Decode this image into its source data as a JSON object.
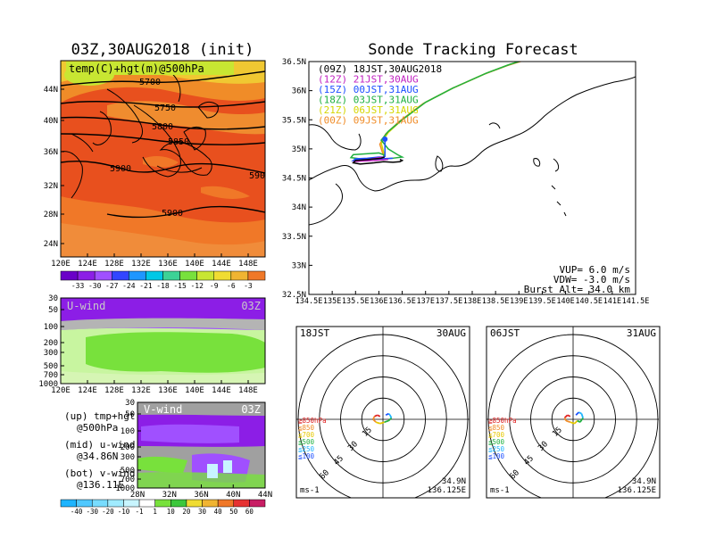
{
  "chart_data": [
    {
      "type": "heatmap",
      "panel": "upper-left map",
      "title": "03Z,30AUG2018 (init)",
      "inner_label": "temp(C)+hgt(m)@500hPa",
      "x_ticks": [
        "120E",
        "124E",
        "128E",
        "132E",
        "136E",
        "140E",
        "144E",
        "148E"
      ],
      "y_ticks": [
        "24N",
        "28N",
        "32N",
        "36N",
        "40N",
        "44N"
      ],
      "contour_labels": [
        "5700",
        "5750",
        "5800",
        "5850",
        "5900",
        "5900",
        "5900",
        "590"
      ],
      "colorbar_ticks": [
        "-33",
        "-30",
        "-27",
        "-24",
        "-21",
        "-18",
        "-15",
        "-12",
        "-9",
        "-6",
        "-3"
      ],
      "colorbar_colors": [
        "#6a00c8",
        "#8c1ee6",
        "#a050ff",
        "#3246ff",
        "#1e96ff",
        "#00c8e6",
        "#3cd296",
        "#78e13c",
        "#c8e632",
        "#f0dc32",
        "#f0b432",
        "#f07828"
      ]
    },
    {
      "type": "heatmap",
      "panel": "u-wind cross section",
      "label": "U-wind",
      "time": "03Z",
      "y_ticks": [
        "30",
        "50",
        "100",
        "200",
        "300",
        "500",
        "700",
        "1000"
      ],
      "x_ticks": [
        "120E",
        "124E",
        "128E",
        "132E",
        "136E",
        "140E",
        "144E",
        "148E"
      ]
    },
    {
      "type": "heatmap",
      "panel": "v-wind cross section",
      "label": "V-wind",
      "time": "03Z",
      "y_ticks": [
        "30",
        "50",
        "100",
        "200",
        "300",
        "500",
        "700",
        "1000"
      ],
      "x_ticks": [
        "28N",
        "32N",
        "36N",
        "40N",
        "44N"
      ],
      "colorbar_ticks": [
        "-40",
        "-30",
        "-20",
        "-10",
        "-1",
        "1",
        "10",
        "20",
        "30",
        "40",
        "50",
        "60"
      ],
      "colorbar_colors": [
        "#1eb4ff",
        "#50c8ff",
        "#78dcff",
        "#a0ebff",
        "#c8f5ff",
        "#ffffff",
        "#78e13c",
        "#3cc83c",
        "#f0dc32",
        "#f0b432",
        "#f07828",
        "#e63232",
        "#c81e64"
      ]
    },
    {
      "type": "line",
      "panel": "sonde tracking map",
      "title": "Sonde Tracking Forecast",
      "x_ticks": [
        "134.5E",
        "135E",
        "135.5E",
        "136E",
        "136.5E",
        "137E",
        "137.5E",
        "138E",
        "138.5E",
        "139E",
        "139.5E",
        "140E",
        "140.5E",
        "141E",
        "141.5E"
      ],
      "y_ticks": [
        "36.5N",
        "36N",
        "35.5N",
        "35N",
        "34.5N",
        "34N",
        "33.5N",
        "33N",
        "32.5N"
      ],
      "xlim": [
        134.5,
        141.5
      ],
      "ylim": [
        32.5,
        36.5
      ],
      "launch_point": [
        136.13,
        34.86
      ],
      "series": [
        {
          "name": "(09Z)  18JST,30AUG2018",
          "color": "#000000",
          "lon": [
            136.12,
            136.05,
            135.8,
            135.5,
            135.45,
            135.6,
            135.9,
            136.1,
            136.3,
            136.45,
            136.5,
            136.45
          ],
          "lat": [
            34.86,
            34.84,
            34.82,
            34.8,
            34.76,
            34.74,
            34.76,
            34.78,
            34.77,
            34.78,
            34.8,
            34.82
          ]
        },
        {
          "name": "(12Z)  21JST,30AUG",
          "color": "#c020c0",
          "lon": [
            136.12,
            136.0,
            135.8,
            135.55,
            135.45,
            135.6,
            135.9,
            136.2
          ],
          "lat": [
            34.86,
            34.85,
            34.82,
            34.8,
            34.78,
            34.79,
            34.8,
            34.82
          ]
        },
        {
          "name": "(15Z)  00JST,31AUG",
          "color": "#1e50ff",
          "lon": [
            136.12,
            136.0,
            135.75,
            135.5,
            135.45,
            135.7,
            136.0,
            136.3
          ],
          "lat": [
            34.86,
            34.86,
            34.84,
            34.83,
            34.8,
            34.82,
            34.83,
            34.84
          ]
        },
        {
          "name": "(18Z)  03JST,31AUG",
          "color": "#20b040",
          "lon": [
            136.12,
            136.1,
            136.0,
            135.8,
            135.45,
            135.4,
            135.6,
            136.0,
            136.3,
            136.5,
            136.4,
            136.2,
            136.05,
            136.2,
            136.5,
            137.0,
            137.6,
            138.3,
            138.8,
            139.2
          ],
          "lat": [
            34.86,
            34.9,
            34.93,
            34.92,
            34.9,
            34.85,
            34.83,
            34.82,
            34.84,
            34.86,
            34.9,
            35.0,
            35.15,
            35.3,
            35.5,
            35.8,
            36.05,
            36.3,
            36.45,
            36.55
          ]
        },
        {
          "name": "(21Z)  06JST,31AUG",
          "color": "#d6d600",
          "lon": [
            136.12,
            136.1,
            136.05,
            136.2,
            136.5,
            137.0,
            137.6,
            138.3,
            138.8,
            139.2
          ],
          "lat": [
            34.86,
            34.95,
            35.1,
            35.28,
            35.5,
            35.8,
            36.05,
            36.3,
            36.45,
            36.55
          ]
        },
        {
          "name": "(00Z)  09JST,31AUG",
          "color": "#f08c28",
          "lon": [
            136.12,
            136.08,
            136.02,
            136.15,
            136.45,
            136.95,
            137.55,
            138.25,
            138.75,
            139.15
          ],
          "lat": [
            34.86,
            34.93,
            35.08,
            35.26,
            35.48,
            35.78,
            36.03,
            36.28,
            36.43,
            36.53
          ]
        }
      ],
      "annotation": [
        "VUP=  6.0 m/s",
        "VDW= -3.0 m/s",
        "Burst Alt= 34.0 km"
      ]
    },
    {
      "type": "scatter",
      "panel": "hodograph left",
      "jst": "18JST",
      "date": "30AUG",
      "ring_labels": [
        "15",
        "30",
        "45",
        "60"
      ],
      "unit": "ms-1",
      "location": [
        "34.9N",
        "136.125E"
      ],
      "legend": [
        {
          "label": "≧850hPa",
          "color": "#e02020"
        },
        {
          "label": "≦850",
          "color": "#f08c28"
        },
        {
          "label": "≦700",
          "color": "#e6c800"
        },
        {
          "label": "≦500",
          "color": "#20b040"
        },
        {
          "label": "≦250",
          "color": "#1eb4ff"
        },
        {
          "label": "≦100",
          "color": "#1e50ff"
        }
      ],
      "u": [
        -2,
        -4,
        -6,
        -7,
        -5,
        -2,
        1,
        4,
        6,
        5,
        4,
        2
      ],
      "v": [
        2,
        3,
        2,
        0,
        -2,
        -3,
        -2,
        -1,
        1,
        3,
        4,
        3
      ]
    },
    {
      "type": "scatter",
      "panel": "hodograph right",
      "jst": "06JST",
      "date": "31AUG",
      "ring_labels": [
        "15",
        "30",
        "45",
        "60"
      ],
      "unit": "ms-1",
      "location": [
        "34.9N",
        "136.125E"
      ],
      "legend": [
        {
          "label": "≧850hPa",
          "color": "#e02020"
        },
        {
          "label": "≦850",
          "color": "#f08c28"
        },
        {
          "label": "≦700",
          "color": "#e6c800"
        },
        {
          "label": "≦500",
          "color": "#20b040"
        },
        {
          "label": "≦250",
          "color": "#1eb4ff"
        },
        {
          "label": "≦100",
          "color": "#1e50ff"
        }
      ],
      "u": [
        -2,
        -4,
        -6,
        -5,
        -2,
        1,
        3,
        5,
        7,
        6,
        4,
        2
      ],
      "v": [
        2,
        3,
        1,
        -1,
        -2,
        -3,
        -1,
        -2,
        1,
        4,
        5,
        3
      ]
    }
  ],
  "text_panel": {
    "up_a": "(up) tmp+hgt",
    "up_b": "@500hPa",
    "mid_a": "(mid) u-wind",
    "mid_b": "@34.86N",
    "bot_a": "(bot) v-wind",
    "bot_b": "@136.11E"
  }
}
